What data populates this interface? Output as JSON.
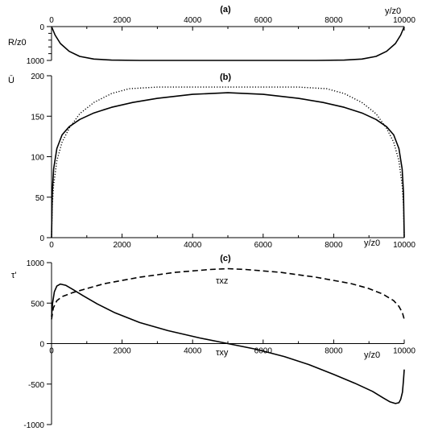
{
  "chart_data": [
    {
      "panel": "(a)",
      "type": "line",
      "xlabel": "y/z0",
      "ylabel": "R/z0",
      "xlim": [
        0,
        10000
      ],
      "ylim": [
        0,
        1000
      ],
      "y_inverted": true,
      "x_ticks": [
        "0",
        "2000",
        "4000",
        "6000",
        "8000",
        "10000"
      ],
      "y_ticks": [
        "0",
        "1000"
      ],
      "series": [
        {
          "style": "solid",
          "x": [
            0,
            100,
            250,
            500,
            800,
            1200,
            1700,
            2500,
            3500,
            5000,
            6500,
            7500,
            8300,
            8800,
            9200,
            9500,
            9750,
            9900,
            10000
          ],
          "y": [
            0,
            250,
            500,
            730,
            880,
            960,
            990,
            1000,
            1000,
            1000,
            1000,
            1000,
            990,
            960,
            880,
            730,
            500,
            250,
            0
          ]
        }
      ]
    },
    {
      "panel": "(b)",
      "type": "line",
      "xlabel": "y/z0",
      "ylabel": "Ū",
      "xlim": [
        0,
        10000
      ],
      "ylim": [
        0,
        200
      ],
      "x_ticks": [
        "0",
        "2000",
        "4000",
        "6000",
        "8000",
        "10000"
      ],
      "y_ticks": [
        "0",
        "50",
        "100",
        "150",
        "200"
      ],
      "series": [
        {
          "style": "solid",
          "x": [
            0,
            20,
            60,
            150,
            300,
            500,
            800,
            1200,
            1700,
            2300,
            3000,
            4000,
            5000,
            6000,
            7000,
            7700,
            8300,
            8800,
            9200,
            9500,
            9700,
            9850,
            9940,
            9980,
            10000
          ],
          "y": [
            0,
            55,
            85,
            110,
            127,
            137,
            146,
            154,
            161,
            167,
            172,
            177,
            179,
            177,
            172,
            167,
            161,
            154,
            146,
            137,
            127,
            110,
            85,
            55,
            0
          ]
        },
        {
          "style": "dotted",
          "x": [
            0,
            20,
            60,
            150,
            300,
            500,
            800,
            1200,
            1700,
            2200,
            3000,
            5000,
            7000,
            7800,
            8300,
            8800,
            9200,
            9500,
            9700,
            9850,
            9940,
            9980,
            10000
          ],
          "y": [
            0,
            40,
            65,
            95,
            118,
            135,
            153,
            167,
            178,
            184,
            186,
            186,
            186,
            184,
            178,
            167,
            153,
            135,
            118,
            95,
            65,
            40,
            0
          ]
        }
      ]
    },
    {
      "panel": "(c)",
      "type": "line",
      "xlabel": "y/z0",
      "ylabel": "τ'",
      "xlim": [
        0,
        10000
      ],
      "ylim": [
        -1000,
        1000
      ],
      "x_ticks": [
        "0",
        "2000",
        "4000",
        "6000",
        "8000",
        "10000"
      ],
      "y_ticks": [
        "-1000",
        "-500",
        "0",
        "500",
        "1000"
      ],
      "annotations": [
        "τxz",
        "τxy"
      ],
      "series": [
        {
          "name": "τxy",
          "style": "solid",
          "x": [
            0,
            30,
            80,
            150,
            250,
            400,
            600,
            900,
            1300,
            1800,
            2500,
            3300,
            4200,
            5000,
            5800,
            6600,
            7300,
            8000,
            8600,
            9100,
            9400,
            9600,
            9750,
            9850,
            9900,
            9950,
            9980,
            10000
          ],
          "y": [
            330,
            500,
            640,
            710,
            735,
            720,
            670,
            590,
            490,
            380,
            260,
            160,
            70,
            0,
            -70,
            -160,
            -260,
            -380,
            -490,
            -590,
            -670,
            -720,
            -740,
            -730,
            -690,
            -600,
            -450,
            -320
          ]
        },
        {
          "name": "τxz",
          "style": "dashed",
          "x": [
            0,
            50,
            150,
            300,
            600,
            1000,
            1500,
            2500,
            3500,
            4500,
            5000,
            5500,
            6500,
            7500,
            8500,
            9000,
            9400,
            9700,
            9850,
            9950,
            10000
          ],
          "y": [
            300,
            440,
            530,
            580,
            630,
            680,
            740,
            820,
            880,
            915,
            925,
            915,
            880,
            820,
            740,
            680,
            610,
            530,
            460,
            380,
            300
          ]
        }
      ]
    }
  ]
}
